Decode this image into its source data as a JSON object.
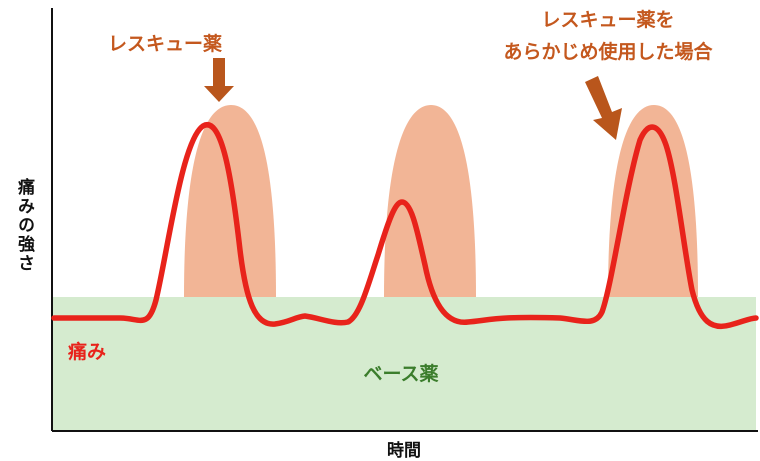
{
  "labels": {
    "y_axis": "痛みの強さ",
    "x_axis": "時間",
    "rescue": "レスキュー薬",
    "rescue_preemptive_line1": "レスキュー薬を",
    "rescue_preemptive_line2": "あらかじめ使用した場合",
    "pain": "痛み",
    "base": "ベース薬"
  },
  "colors": {
    "pain_line": "#e8231b",
    "base_fill": "#d5ebcf",
    "rescue_fill": "#f2b596",
    "arrow": "#b9561c",
    "rescue_text": "#c4581e",
    "base_text": "#3b7d2c",
    "axis": "#111111"
  }
}
